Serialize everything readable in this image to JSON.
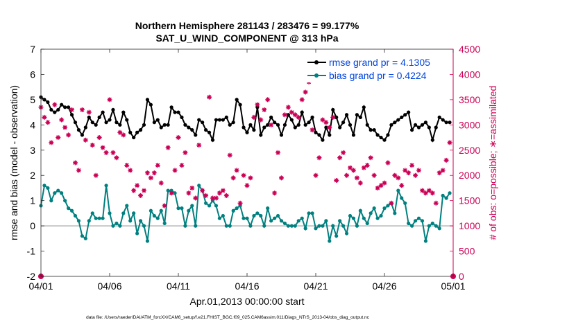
{
  "chart_data": {
    "type": "line",
    "title": "Northern Hemisphere 281143 / 283476 = 99.177%",
    "subtitle": "SAT_U_WIND_COMPONENT @ 313 hPa",
    "xlabel": "Apr.01,2013 00:00:00 start",
    "ylabel_left": "rmse and bias (model - observation)",
    "ylabel_right": "# of obs: o=possible; ∗=assimilated",
    "footnote": "data file: /Users/raeder/DAI/ATM_forcXX/CAM6_setup/f.e21.FHIST_BGC.f09_025.CAM6assim.011/Diags_NTrS_2013-04/obs_diag_output.nc",
    "x_ticks": [
      {
        "label": "04/01",
        "value": 0
      },
      {
        "label": "04/06",
        "value": 5
      },
      {
        "label": "04/11",
        "value": 10
      },
      {
        "label": "04/16",
        "value": 15
      },
      {
        "label": "04/21",
        "value": 20
      },
      {
        "label": "04/26",
        "value": 25
      },
      {
        "label": "05/01",
        "value": 30
      }
    ],
    "xlim": [
      0,
      30
    ],
    "ylim_left": [
      -2,
      7
    ],
    "yticks_left": [
      "-2",
      "-1",
      "0",
      "1",
      "2",
      "3",
      "4",
      "5",
      "6",
      "7"
    ],
    "ylim_right": [
      0,
      4500
    ],
    "yticks_right": [
      "0",
      "500",
      "1000",
      "1500",
      "2000",
      "2500",
      "3000",
      "3500",
      "4000",
      "4500"
    ],
    "legend_position": "top-right",
    "colors": {
      "rmse": "#000000",
      "bias": "#00807f",
      "obs": "#cc0055",
      "legend_text": "#0044dd",
      "zero_line": "#b3b3b3",
      "axis_right": "#cc0055"
    },
    "x": [
      0.0,
      0.25,
      0.5,
      0.75,
      1.0,
      1.25,
      1.5,
      1.75,
      2.0,
      2.25,
      2.5,
      2.75,
      3.0,
      3.25,
      3.5,
      3.75,
      4.0,
      4.25,
      4.5,
      4.75,
      5.0,
      5.25,
      5.5,
      5.75,
      6.0,
      6.25,
      6.5,
      6.75,
      7.0,
      7.25,
      7.5,
      7.75,
      8.0,
      8.25,
      8.5,
      8.75,
      9.0,
      9.25,
      9.5,
      9.75,
      10.0,
      10.25,
      10.5,
      10.75,
      11.0,
      11.25,
      11.5,
      11.75,
      12.0,
      12.25,
      12.5,
      12.75,
      13.0,
      13.25,
      13.5,
      13.75,
      14.0,
      14.25,
      14.5,
      14.75,
      15.0,
      15.25,
      15.5,
      15.75,
      16.0,
      16.25,
      16.5,
      16.75,
      17.0,
      17.25,
      17.5,
      17.75,
      18.0,
      18.25,
      18.5,
      18.75,
      19.0,
      19.25,
      19.5,
      19.75,
      20.0,
      20.25,
      20.5,
      20.75,
      21.0,
      21.25,
      21.5,
      21.75,
      22.0,
      22.25,
      22.5,
      22.75,
      23.0,
      23.25,
      23.5,
      23.75,
      24.0,
      24.25,
      24.5,
      24.75,
      25.0,
      25.25,
      25.5,
      25.75,
      26.0,
      26.25,
      26.5,
      26.75,
      27.0,
      27.25,
      27.5,
      27.75,
      28.0,
      28.25,
      28.5,
      28.75,
      29.0,
      29.25,
      29.5,
      29.75
    ],
    "series": [
      {
        "name": "rmse grand pr = 4.1305",
        "values": [
          5.1,
          5.0,
          4.9,
          4.6,
          4.5,
          4.6,
          4.8,
          4.7,
          4.7,
          4.4,
          4.1,
          3.8,
          3.6,
          3.9,
          4.3,
          4.1,
          4.0,
          4.3,
          4.5,
          4.1,
          4.2,
          4.6,
          4.1,
          4.0,
          4.5,
          4.2,
          3.7,
          3.5,
          3.7,
          3.8,
          4.0,
          5.0,
          4.8,
          4.1,
          4.2,
          3.9,
          4.0,
          4.0,
          4.7,
          4.5,
          4.5,
          4.3,
          4.0,
          3.9,
          3.8,
          3.6,
          4.2,
          4.1,
          3.8,
          3.7,
          3.4,
          4.2,
          4.2,
          4.2,
          4.3,
          4.0,
          4.1,
          5.0,
          4.8,
          3.9,
          3.7,
          4.0,
          3.8,
          4.7,
          3.6,
          3.9,
          4.0,
          4.3,
          4.1,
          4.0,
          3.6,
          4.0,
          4.4,
          4.2,
          3.9,
          4.0,
          4.5,
          4.0,
          4.1,
          4.3,
          3.7,
          3.6,
          3.4,
          3.9,
          3.6,
          4.6,
          4.3,
          3.9,
          4.1,
          4.4,
          4.0,
          3.6,
          4.4,
          4.3,
          4.7,
          4.0,
          3.8,
          3.8,
          3.6,
          3.5,
          3.4,
          3.6,
          4.0,
          4.1,
          4.2,
          4.3,
          4.4,
          4.5,
          3.8,
          4.0,
          3.9,
          4.0,
          4.1,
          3.9,
          3.4,
          3.9,
          4.3,
          4.2,
          4.1,
          4.1
        ]
      },
      {
        "name": "bias grand pr = 0.4224",
        "values": [
          0.8,
          1.6,
          1.5,
          1.0,
          1.3,
          1.4,
          1.3,
          1.0,
          0.7,
          0.6,
          0.4,
          0.2,
          -0.4,
          -0.5,
          0.2,
          0.5,
          0.3,
          0.3,
          0.3,
          1.6,
          0.5,
          0.0,
          0.1,
          0.0,
          0.5,
          0.8,
          0.2,
          0.5,
          -0.3,
          0.2,
          0.0,
          -0.6,
          0.6,
          0.4,
          0.3,
          0.6,
          0.1,
          1.4,
          1.4,
          1.3,
          0.7,
          0.7,
          0.0,
          0.6,
          0.8,
          0.0,
          1.6,
          1.4,
          0.9,
          0.8,
          1.0,
          0.8,
          0.3,
          0.4,
          0.0,
          0.0,
          0.6,
          0.7,
          0.8,
          0.3,
          0.3,
          0.0,
          0.4,
          0.5,
          0.4,
          0.0,
          0.7,
          0.2,
          0.3,
          0.4,
          0.2,
          0.1,
          0.0,
          0.0,
          0.0,
          0.2,
          0.3,
          -0.1,
          0.5,
          0.5,
          -0.1,
          0.0,
          0.0,
          0.2,
          -0.6,
          0.0,
          -0.4,
          0.2,
          0.0,
          -0.3,
          0.4,
          0.3,
          0.0,
          0.6,
          0.3,
          0.1,
          0.5,
          0.7,
          0.3,
          0.4,
          0.7,
          0.8,
          0.9,
          0.5,
          1.4,
          1.1,
          0.9,
          0.1,
          0.0,
          0.2,
          0.3,
          0.2,
          -0.6,
          0.0,
          0.1,
          0.0,
          -0.1,
          1.2,
          1.1,
          1.3
        ]
      }
    ],
    "obs_assimilated": [
      3350,
      3150,
      3050,
      2650,
      3400,
      2750,
      3100,
      2950,
      2800,
      3300,
      2250,
      2100,
      3300,
      2700,
      3250,
      2600,
      2000,
      2750,
      2550,
      2450,
      3500,
      2450,
      2350,
      2850,
      2800,
      2200,
      2100,
      1700,
      1800,
      1600,
      1700,
      2050,
      1950,
      2050,
      2200,
      1850,
      1400,
      2550,
      1650,
      2100,
      2750,
      2200,
      2450,
      1650,
      1750,
      1550,
      2600,
      1700,
      1600,
      3550,
      1550,
      1550,
      1650,
      1700,
      1600,
      2400,
      1950,
      2100,
      1450,
      2000,
      1800,
      1950,
      3150,
      3400,
      3100,
      3300,
      3500,
      3000,
      1650,
      2450,
      1950,
      3200,
      3350,
      3250,
      3200,
      3150,
      3500,
      3650,
      3850,
      2900,
      2000,
      2350,
      3100,
      3050,
      2950,
      3150,
      1900,
      2350,
      2450,
      2000,
      2150,
      2100,
      1950,
      1850,
      2150,
      2200,
      2350,
      2000,
      1750,
      1800,
      1850,
      2250,
      1450,
      2000,
      1950,
      1800,
      2100,
      2050,
      2200,
      2000,
      2100,
      1700,
      1650,
      1700,
      1650,
      1450,
      2050,
      2100,
      2300,
      2650
    ]
  }
}
